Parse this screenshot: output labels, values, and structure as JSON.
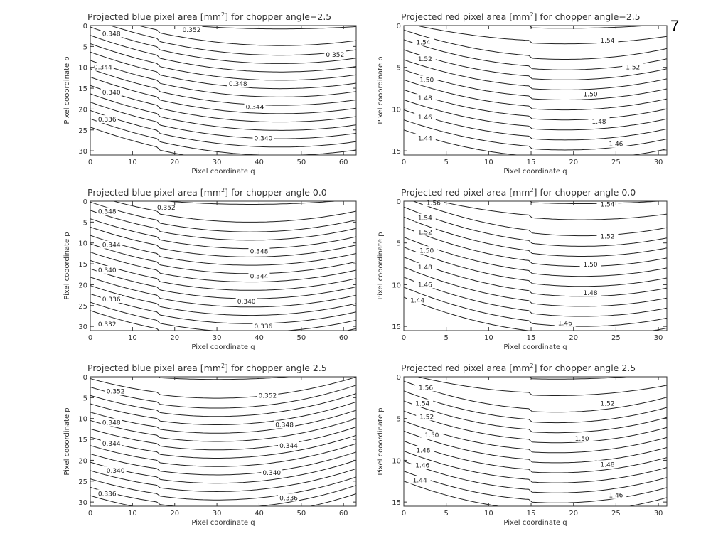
{
  "page": {
    "number": "7"
  },
  "chart_data": [
    {
      "type": "contour",
      "title_prefix": "Projected blue pixel area [mm",
      "title_sup": "2",
      "title_suffix": "] for chopper angle−2.5",
      "xlabel": "Pixel coordinate q",
      "ylabel": "Pixel cooordinate p",
      "xlim": [
        0,
        63
      ],
      "ylim": [
        31,
        0
      ],
      "xticks": [
        "0",
        "10",
        "20",
        "30",
        "40",
        "50",
        "60"
      ],
      "yticks": [
        "0",
        "5",
        "10",
        "15",
        "20",
        "25",
        "30"
      ],
      "xtick_values": [
        0,
        10,
        20,
        30,
        40,
        50,
        60
      ],
      "ytick_values": [
        0,
        5,
        10,
        15,
        20,
        25,
        30
      ],
      "shape": {
        "p0": 1,
        "curv": 4.0,
        "qmin": 45,
        "kink_q": 16,
        "kink": 0.6,
        "lmin": 0.5,
        "lmax": 31.5,
        "step": 2.0
      },
      "contour_labels": [
        {
          "text": "0.348",
          "q": 5,
          "p": 2
        },
        {
          "text": "0.352",
          "q": 24,
          "p": 1
        },
        {
          "text": "0.352",
          "q": 58,
          "p": 7
        },
        {
          "text": "0.344",
          "q": 3,
          "p": 10
        },
        {
          "text": "0.348",
          "q": 35,
          "p": 14
        },
        {
          "text": "0.340",
          "q": 5,
          "p": 16
        },
        {
          "text": "0.344",
          "q": 39,
          "p": 19.5
        },
        {
          "text": "0.336",
          "q": 4,
          "p": 22.5
        },
        {
          "text": "0.340",
          "q": 41,
          "p": 27
        }
      ]
    },
    {
      "type": "contour",
      "title_prefix": "Projected red pixel area [mm",
      "title_sup": "2",
      "title_suffix": "] for chopper angle−2.5",
      "xlabel": "Pixel coordinate q",
      "ylabel": "Pixel cooordinate p",
      "xlim": [
        0,
        31
      ],
      "ylim": [
        15.5,
        0
      ],
      "xticks": [
        "0",
        "5",
        "10",
        "15",
        "20",
        "25",
        "30"
      ],
      "yticks": [
        "0",
        "5",
        "10",
        "15"
      ],
      "xtick_values": [
        0,
        5,
        10,
        15,
        20,
        25,
        30
      ],
      "ytick_values": [
        0,
        5,
        10,
        15
      ],
      "shape": {
        "p0": 0.5,
        "curv": 2.2,
        "qmin": 19,
        "kink_q": 15,
        "kink": 0.3,
        "lmin": 0.3,
        "lmax": 15.8,
        "step": 1.2
      },
      "contour_labels": [
        {
          "text": "1.54",
          "q": 2.3,
          "p": 2
        },
        {
          "text": "1.54",
          "q": 24,
          "p": 1.8
        },
        {
          "text": "1.52",
          "q": 2.5,
          "p": 4
        },
        {
          "text": "1.52",
          "q": 27,
          "p": 5
        },
        {
          "text": "1.50",
          "q": 2.7,
          "p": 6.5
        },
        {
          "text": "1.50",
          "q": 22,
          "p": 8.2
        },
        {
          "text": "1.48",
          "q": 2.5,
          "p": 8.7
        },
        {
          "text": "1.48",
          "q": 23,
          "p": 11.5
        },
        {
          "text": "1.46",
          "q": 2.5,
          "p": 11
        },
        {
          "text": "1.46",
          "q": 25,
          "p": 14.2
        },
        {
          "text": "1.44",
          "q": 2.5,
          "p": 13.5
        }
      ]
    },
    {
      "type": "contour",
      "title_prefix": "Projected blue pixel area [mm",
      "title_sup": "2",
      "title_suffix": "] for chopper angle 0.0",
      "xlabel": "Pixel coordinate q",
      "ylabel": "Pixel cooordinate p",
      "xlim": [
        0,
        63
      ],
      "ylim": [
        31,
        0
      ],
      "xticks": [
        "0",
        "10",
        "20",
        "30",
        "40",
        "50",
        "60"
      ],
      "yticks": [
        "0",
        "5",
        "10",
        "15",
        "20",
        "25",
        "30"
      ],
      "xtick_values": [
        0,
        10,
        20,
        30,
        40,
        50,
        60
      ],
      "ytick_values": [
        0,
        5,
        10,
        15,
        20,
        25,
        30
      ],
      "shape": {
        "p0": 1,
        "curv": 4.5,
        "qmin": 38,
        "kink_q": 16,
        "kink": 0.6,
        "lmin": 0.5,
        "lmax": 31.5,
        "step": 2.0
      },
      "contour_labels": [
        {
          "text": "0.348",
          "q": 4,
          "p": 2.5
        },
        {
          "text": "0.352",
          "q": 18,
          "p": 1.5
        },
        {
          "text": "0.344",
          "q": 5,
          "p": 10.5
        },
        {
          "text": "0.348",
          "q": 40,
          "p": 12
        },
        {
          "text": "0.340",
          "q": 4,
          "p": 16.5
        },
        {
          "text": "0.344",
          "q": 40,
          "p": 18
        },
        {
          "text": "0.336",
          "q": 5,
          "p": 23.5
        },
        {
          "text": "0.340",
          "q": 37,
          "p": 24
        },
        {
          "text": "0.332",
          "q": 4,
          "p": 29.5
        },
        {
          "text": "0.336",
          "q": 41,
          "p": 30
        }
      ]
    },
    {
      "type": "contour",
      "title_prefix": "Projected red pixel area [mm",
      "title_sup": "2",
      "title_suffix": "] for chopper angle 0.0",
      "xlabel": "Pixel coordinate q",
      "ylabel": "Pixel cooordinate p",
      "xlim": [
        0,
        31
      ],
      "ylim": [
        15.5,
        0
      ],
      "xticks": [
        "0",
        "5",
        "10",
        "15",
        "20",
        "25",
        "30"
      ],
      "yticks": [
        "0",
        "5",
        "10",
        "15"
      ],
      "xtick_values": [
        0,
        5,
        10,
        15,
        20,
        25,
        30
      ],
      "ytick_values": [
        0,
        5,
        10,
        15
      ],
      "shape": {
        "p0": 0.5,
        "curv": 2.4,
        "qmin": 21,
        "kink_q": 15,
        "kink": 0.3,
        "lmin": 0.3,
        "lmax": 15.8,
        "step": 1.2
      },
      "contour_labels": [
        {
          "text": "1.56",
          "q": 3.5,
          "p": 0.2
        },
        {
          "text": "1.54",
          "q": 2.5,
          "p": 2
        },
        {
          "text": "1.54",
          "q": 24,
          "p": 0.4
        },
        {
          "text": "1.52",
          "q": 2.5,
          "p": 3.7
        },
        {
          "text": "1.52",
          "q": 24,
          "p": 4.2
        },
        {
          "text": "1.50",
          "q": 2.7,
          "p": 5.9
        },
        {
          "text": "1.50",
          "q": 22,
          "p": 7.6
        },
        {
          "text": "1.48",
          "q": 2.5,
          "p": 7.9
        },
        {
          "text": "1.48",
          "q": 22,
          "p": 11
        },
        {
          "text": "1.46",
          "q": 2.5,
          "p": 10
        },
        {
          "text": "1.46",
          "q": 19,
          "p": 14.6
        },
        {
          "text": "1.44",
          "q": 1.6,
          "p": 11.9
        }
      ]
    },
    {
      "type": "contour",
      "title_prefix": "Projected blue pixel area [mm",
      "title_sup": "2",
      "title_suffix": "] for chopper angle 2.5",
      "xlabel": "Pixel coordinate q",
      "ylabel": "Pixel cooordinate p",
      "xlim": [
        0,
        63
      ],
      "ylim": [
        31,
        0
      ],
      "xticks": [
        "0",
        "10",
        "20",
        "30",
        "40",
        "50",
        "60"
      ],
      "yticks": [
        "0",
        "5",
        "10",
        "15",
        "20",
        "25",
        "30"
      ],
      "xtick_values": [
        0,
        10,
        20,
        30,
        40,
        50,
        60
      ],
      "ytick_values": [
        0,
        5,
        10,
        15,
        20,
        25,
        30
      ],
      "shape": {
        "p0": 1,
        "curv": 5.0,
        "qmin": 30,
        "kink_q": 16,
        "kink": 0.5,
        "lmin": 0.5,
        "lmax": 31.5,
        "step": 2.0
      },
      "contour_labels": [
        {
          "text": "0.352",
          "q": 6,
          "p": 3.5
        },
        {
          "text": "0.352",
          "q": 42,
          "p": 4.5
        },
        {
          "text": "0.348",
          "q": 5,
          "p": 11
        },
        {
          "text": "0.348",
          "q": 46,
          "p": 11.5
        },
        {
          "text": "0.344",
          "q": 5,
          "p": 16
        },
        {
          "text": "0.344",
          "q": 47,
          "p": 16.5
        },
        {
          "text": "0.340",
          "q": 6,
          "p": 22.5
        },
        {
          "text": "0.340",
          "q": 43,
          "p": 23
        },
        {
          "text": "0.336",
          "q": 4,
          "p": 28
        },
        {
          "text": "0.336",
          "q": 47,
          "p": 29
        }
      ]
    },
    {
      "type": "contour",
      "title_prefix": "Projected red pixel area [mm",
      "title_sup": "2",
      "title_suffix": "] for chopper angle 2.5",
      "xlabel": "Pixel coordinate q",
      "ylabel": "Pixel cooordinate p",
      "xlim": [
        0,
        31
      ],
      "ylim": [
        15.5,
        0
      ],
      "xticks": [
        "0",
        "5",
        "10",
        "15",
        "20",
        "25",
        "30"
      ],
      "yticks": [
        "0",
        "5",
        "10",
        "15"
      ],
      "xtick_values": [
        0,
        5,
        10,
        15,
        20,
        25,
        30
      ],
      "ytick_values": [
        0,
        5,
        10,
        15
      ],
      "shape": {
        "p0": 0.3,
        "curv": 2.6,
        "qmin": 18,
        "kink_q": 15,
        "kink": 0.3,
        "lmin": 0.3,
        "lmax": 15.8,
        "step": 1.2
      },
      "contour_labels": [
        {
          "text": "1.56",
          "q": 2.6,
          "p": 1.3
        },
        {
          "text": "1.54",
          "q": 2.2,
          "p": 3.2
        },
        {
          "text": "1.52",
          "q": 2.7,
          "p": 4.8
        },
        {
          "text": "1.52",
          "q": 24,
          "p": 3.2
        },
        {
          "text": "1.50",
          "q": 3.3,
          "p": 7
        },
        {
          "text": "1.50",
          "q": 21,
          "p": 7.4
        },
        {
          "text": "1.48",
          "q": 2.3,
          "p": 8.8
        },
        {
          "text": "1.48",
          "q": 24,
          "p": 10.5
        },
        {
          "text": "1.46",
          "q": 2.2,
          "p": 10.6
        },
        {
          "text": "1.46",
          "q": 25,
          "p": 14.2
        },
        {
          "text": "1.44",
          "q": 1.9,
          "p": 12.4
        }
      ]
    }
  ]
}
